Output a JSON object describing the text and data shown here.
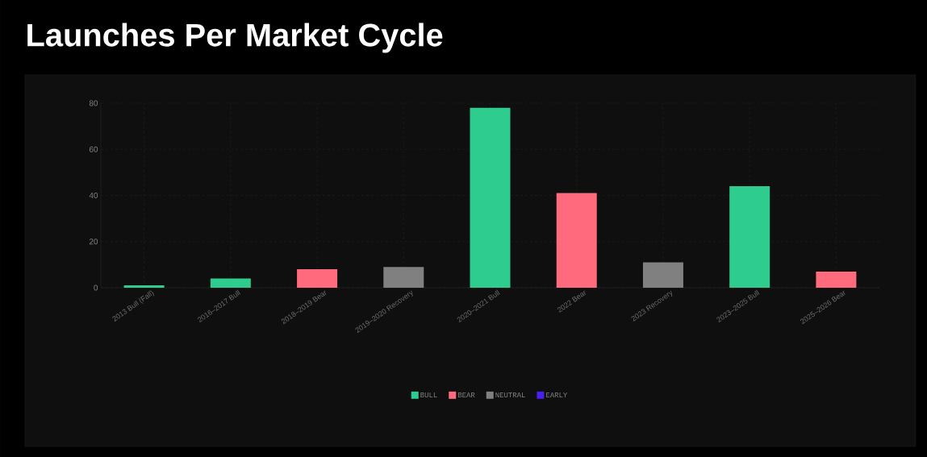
{
  "chart_data": {
    "type": "bar",
    "title": "Launches Per Market Cycle",
    "categories": [
      "2013 Bull (Fall)",
      "2016–2017 Bull",
      "2018–2019 Bear",
      "2019–2020 Recovery",
      "2020–2021 Bull",
      "2022 Bear",
      "2023 Recovery",
      "2023–2025 Bull",
      "2025–2026 Bear"
    ],
    "series": [
      {
        "name": "BULL",
        "color": "#2ecc8f",
        "values": [
          1,
          4,
          null,
          null,
          78,
          null,
          null,
          44,
          null
        ]
      },
      {
        "name": "BEAR",
        "color": "#ff6b7d",
        "values": [
          null,
          null,
          8,
          null,
          null,
          41,
          null,
          null,
          7
        ]
      },
      {
        "name": "NEUTRAL",
        "color": "#808080",
        "values": [
          null,
          null,
          null,
          9,
          null,
          null,
          11,
          null,
          null
        ]
      },
      {
        "name": "EARLY",
        "color": "#4a1ff0",
        "values": [
          null,
          null,
          null,
          null,
          null,
          null,
          null,
          null,
          null
        ]
      }
    ],
    "ylim": [
      0,
      80
    ],
    "yticks": [
      0,
      20,
      40,
      60,
      80
    ],
    "grid": true,
    "legend": "bottom"
  }
}
